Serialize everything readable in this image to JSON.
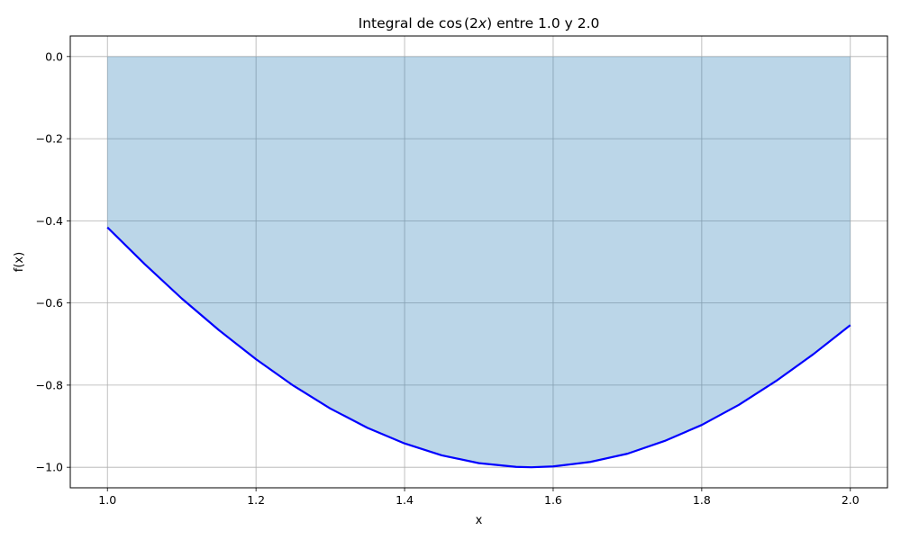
{
  "chart_data": {
    "type": "area",
    "title": "Integral de cos(2x) entre 1.0 y 2.0",
    "title_parts": {
      "before": "Integral de ",
      "func": "cos",
      "arg_open": "(2",
      "arg_var": "x",
      "arg_close": ")",
      "after": " entre 1.0 y 2.0"
    },
    "xlabel": "x",
    "ylabel": "f(x)",
    "xlim": [
      0.95,
      2.05
    ],
    "ylim": [
      -1.05,
      0.05
    ],
    "xticks": [
      1.0,
      1.2,
      1.4,
      1.6,
      1.8,
      2.0
    ],
    "xtick_labels": [
      "1.0",
      "1.2",
      "1.4",
      "1.6",
      "1.8",
      "2.0"
    ],
    "yticks": [
      0.0,
      -0.2,
      -0.4,
      -0.6,
      -0.8,
      -1.0
    ],
    "ytick_labels": [
      "0.0",
      "−0.2",
      "−0.4",
      "−0.6",
      "−0.8",
      "−1.0"
    ],
    "grid": true,
    "series": [
      {
        "x": [
          1.0,
          1.05,
          1.1,
          1.15,
          1.2,
          1.25,
          1.3,
          1.35,
          1.4,
          1.45,
          1.5,
          1.55,
          1.5708,
          1.6,
          1.65,
          1.7,
          1.75,
          1.8,
          1.85,
          1.9,
          1.95,
          2.0
        ],
        "y": [
          -0.416,
          -0.505,
          -0.589,
          -0.666,
          -0.737,
          -0.801,
          -0.857,
          -0.904,
          -0.942,
          -0.971,
          -0.99,
          -0.999,
          -1.0,
          -0.998,
          -0.987,
          -0.967,
          -0.936,
          -0.897,
          -0.848,
          -0.79,
          -0.725,
          -0.654
        ],
        "color": "#0000ff"
      }
    ],
    "fill": {
      "from": 1.0,
      "to": 2.0,
      "baseline": 0.0,
      "color": "#1f77b4",
      "alpha": 0.3
    }
  }
}
